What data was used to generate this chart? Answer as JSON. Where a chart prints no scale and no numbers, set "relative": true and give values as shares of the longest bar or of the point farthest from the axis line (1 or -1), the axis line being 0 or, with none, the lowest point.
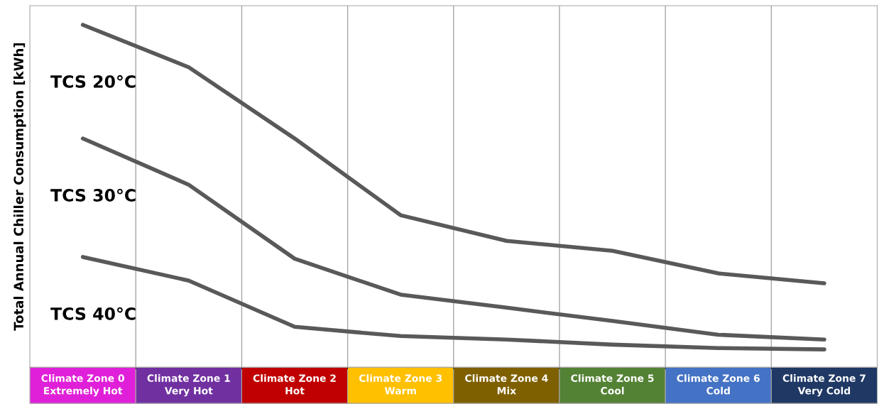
{
  "chart_data": {
    "type": "line",
    "relative": true,
    "ylabel": "Total Annual Chiller Consumption [kWh]",
    "categories": [
      "Climate Zone 0\nExtremely Hot",
      "Climate Zone 1\nVery Hot",
      "Climate Zone 2\nHot",
      "Climate Zone 3\nWarm",
      "Climate Zone 4\nMix",
      "Climate Zone 5\nCool",
      "Climate Zone 6\nCold",
      "Climate Zone 7\nVery Cold"
    ],
    "colors": [
      "#e020d8",
      "#7030a0",
      "#c00000",
      "#ffc000",
      "#7f6000",
      "#548235",
      "#4472c4",
      "#1f3864"
    ],
    "series": [
      {
        "name": "TCS 20°C",
        "color": "#595959",
        "values": [
          1,
          0.876,
          0.668,
          0.444,
          0.369,
          0.34,
          0.274,
          0.245
        ]
      },
      {
        "name": "TCS 30°C",
        "color": "#595959",
        "values": [
          0.668,
          0.533,
          0.317,
          0.212,
          0.174,
          0.135,
          0.095,
          0.081
        ]
      },
      {
        "name": "TCS 40°C",
        "color": "#595959",
        "values": [
          0.322,
          0.253,
          0.118,
          0.091,
          0.081,
          0.066,
          0.056,
          0.052
        ]
      }
    ],
    "grid": "x",
    "marker": "none",
    "line_style": "solid",
    "legend": false
  }
}
